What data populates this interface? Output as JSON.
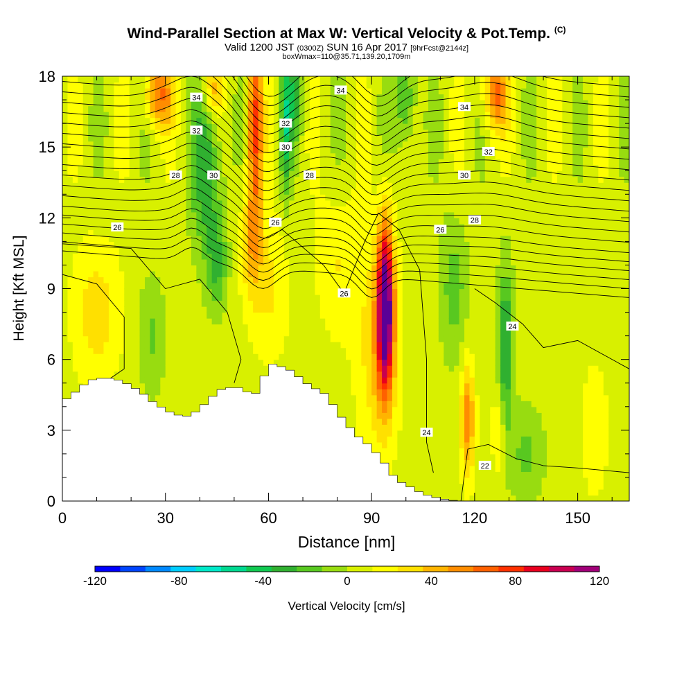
{
  "title": "Wind-Parallel Section at Max W: Vertical Velocity & Pot.Temp.",
  "copyright": "(C)",
  "subtitle_main": "Valid 1200 JST",
  "subtitle_utc": "(0300Z)",
  "subtitle_date": "SUN 16 Apr 2017",
  "subtitle_fcst": "[9hrFcst@2144z]",
  "subtitle2": "boxWmax=110@35.71,139.20,1709m",
  "colors": {
    "scale": [
      "#0000ff",
      "#0044ff",
      "#0088ff",
      "#00ccff",
      "#00e8c8",
      "#00d890",
      "#10c850",
      "#30b030",
      "#58c820",
      "#98dc10",
      "#d8f000",
      "#ffff00",
      "#ffe000",
      "#ffb400",
      "#ff8c00",
      "#ff6000",
      "#ff3000",
      "#e8001e",
      "#c80050",
      "#a00078",
      "#5a0096"
    ],
    "terrain": "#ffffff",
    "contour": "#000000"
  },
  "chart_data": {
    "type": "heatmap",
    "xlabel": "Distance [nm]",
    "ylabel": "Height [Kft MSL]",
    "xlim": [
      0,
      165
    ],
    "ylim": [
      0,
      18
    ],
    "xticks": [
      0,
      30,
      60,
      90,
      120,
      150
    ],
    "yticks": [
      0,
      3,
      6,
      9,
      12,
      15,
      18
    ],
    "colorbar": {
      "label": "Vertical Velocity [cm/s]",
      "range": [
        -120,
        120
      ],
      "step": 12,
      "ticks": [
        -120,
        -80,
        -40,
        0,
        40,
        80,
        120
      ]
    },
    "vertical_velocity_features": [
      {
        "x": 56,
        "y_range": [
          10,
          18
        ],
        "max": 90
      },
      {
        "x": 66,
        "y_range": [
          13,
          18
        ],
        "min": -40
      },
      {
        "x": 94,
        "y_range": [
          5,
          12
        ],
        "max": 120
      },
      {
        "x": 118,
        "y_range": [
          1,
          6
        ],
        "max": 50
      },
      {
        "x": 129,
        "y_range": [
          2,
          10
        ],
        "min": -40
      },
      {
        "x": 42,
        "y_range": [
          11,
          17
        ],
        "min": -40
      },
      {
        "x": 28,
        "y_range": [
          15,
          18
        ],
        "max": 55
      },
      {
        "x": 128,
        "y_range": [
          14,
          18
        ],
        "max": 55
      }
    ],
    "potential_temperature_contours": [
      {
        "label": "22",
        "x": 123,
        "y": 1.5
      },
      {
        "label": "24",
        "x": 106,
        "y": 2.9
      },
      {
        "label": "24",
        "x": 131,
        "y": 7.4
      },
      {
        "label": "26",
        "x": 16,
        "y": 11.6
      },
      {
        "label": "26",
        "x": 62,
        "y": 11.8
      },
      {
        "label": "26",
        "x": 82,
        "y": 8.8
      },
      {
        "label": "26",
        "x": 110,
        "y": 11.5
      },
      {
        "label": "28",
        "x": 33,
        "y": 13.8
      },
      {
        "label": "28",
        "x": 72,
        "y": 13.8
      },
      {
        "label": "28",
        "x": 120,
        "y": 11.9
      },
      {
        "label": "30",
        "x": 44,
        "y": 13.8
      },
      {
        "label": "30",
        "x": 65,
        "y": 15.0
      },
      {
        "label": "30",
        "x": 117,
        "y": 13.8
      },
      {
        "label": "32",
        "x": 39,
        "y": 15.7
      },
      {
        "label": "32",
        "x": 65,
        "y": 16.0
      },
      {
        "label": "32",
        "x": 124,
        "y": 14.8
      },
      {
        "label": "34",
        "x": 39,
        "y": 17.1
      },
      {
        "label": "34",
        "x": 81,
        "y": 17.4
      },
      {
        "label": "34",
        "x": 117,
        "y": 16.7
      }
    ],
    "terrain_profile": {
      "x": [
        0,
        3,
        5,
        8,
        10,
        15,
        20,
        25,
        27,
        30,
        32,
        35,
        37,
        40,
        42,
        45,
        47,
        52,
        55,
        57,
        60,
        62,
        67,
        70,
        72,
        77,
        80,
        82,
        85,
        87,
        90,
        92,
        95,
        97,
        100,
        105,
        110,
        115,
        165
      ],
      "height": [
        4.2,
        4.5,
        4.8,
        5.1,
        5.2,
        5.2,
        4.9,
        4.4,
        4.1,
        3.9,
        3.7,
        3.6,
        3.6,
        3.9,
        4.2,
        4.6,
        4.8,
        4.8,
        4.5,
        4.6,
        5.8,
        5.8,
        5.5,
        5.1,
        4.9,
        4.5,
        3.8,
        3.4,
        2.9,
        2.6,
        2.3,
        1.9,
        1.4,
        0.9,
        0.7,
        0.3,
        0.1,
        0.0,
        0.0
      ]
    }
  }
}
